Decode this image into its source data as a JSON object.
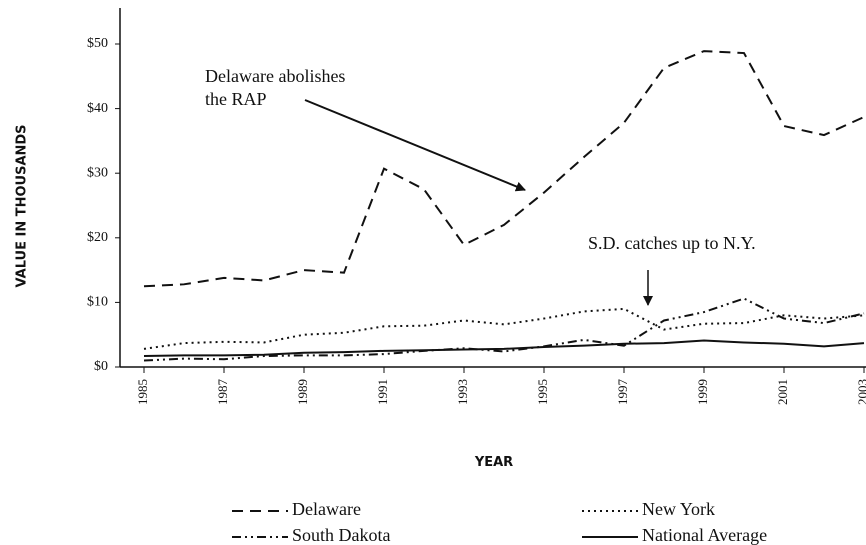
{
  "chart_data": {
    "type": "line",
    "y_label": "VALUE IN THOUSANDS",
    "x_label": "YEAR",
    "x": [
      1985,
      1986,
      1987,
      1988,
      1989,
      1990,
      1991,
      1992,
      1993,
      1994,
      1995,
      1996,
      1997,
      1998,
      1999,
      2000,
      2001,
      2002,
      2003
    ],
    "series": [
      {
        "name": "Delaware",
        "color": "#111111",
        "dash": "11,7",
        "values": [
          12.5,
          12.8,
          13.8,
          13.4,
          15,
          14.6,
          30.7,
          27.5,
          18.9,
          22,
          27,
          32.5,
          37.8,
          46.3,
          48.9,
          48.6,
          37.3,
          35.9,
          38.7
        ]
      },
      {
        "name": "New York",
        "color": "#111111",
        "dash": "2,4",
        "values": [
          2.8,
          3.7,
          3.9,
          3.8,
          5,
          5.3,
          6.3,
          6.4,
          7.2,
          6.6,
          7.5,
          8.6,
          9,
          5.8,
          6.7,
          6.8,
          8,
          7.5,
          8
        ]
      },
      {
        "name": "South Dakota",
        "color": "#111111",
        "dash": "9,4,2,4,2,4",
        "values": [
          1,
          1.3,
          1.2,
          1.7,
          1.8,
          1.8,
          2,
          2.5,
          2.9,
          2.4,
          3.2,
          4.2,
          3.3,
          7.2,
          8.5,
          10.6,
          7.5,
          6.8,
          8.3
        ]
      },
      {
        "name": "National Average",
        "color": "#111111",
        "dash": "none",
        "values": [
          1.7,
          1.8,
          1.8,
          1.9,
          2.2,
          2.3,
          2.5,
          2.6,
          2.7,
          2.8,
          3.1,
          3.3,
          3.6,
          3.7,
          4.1,
          3.8,
          3.6,
          3.2,
          3.7
        ]
      }
    ],
    "xlim": [
      1984.4,
      2003.05
    ],
    "ylim": [
      0,
      56
    ],
    "xticks": [
      1985,
      1987,
      1989,
      1991,
      1993,
      1995,
      1997,
      1999,
      2001,
      2003
    ],
    "yticks": [
      {
        "value": 0,
        "label": "$0"
      },
      {
        "value": 10,
        "label": "$10"
      },
      {
        "value": 20,
        "label": "$20"
      },
      {
        "value": 30,
        "label": "$30"
      },
      {
        "value": 40,
        "label": "$40"
      },
      {
        "value": 50,
        "label": "$50"
      }
    ],
    "annotations": [
      [
        "Delaware abolishes",
        "the RAP"
      ],
      [
        "S.D. catches up to N.Y."
      ]
    ]
  }
}
